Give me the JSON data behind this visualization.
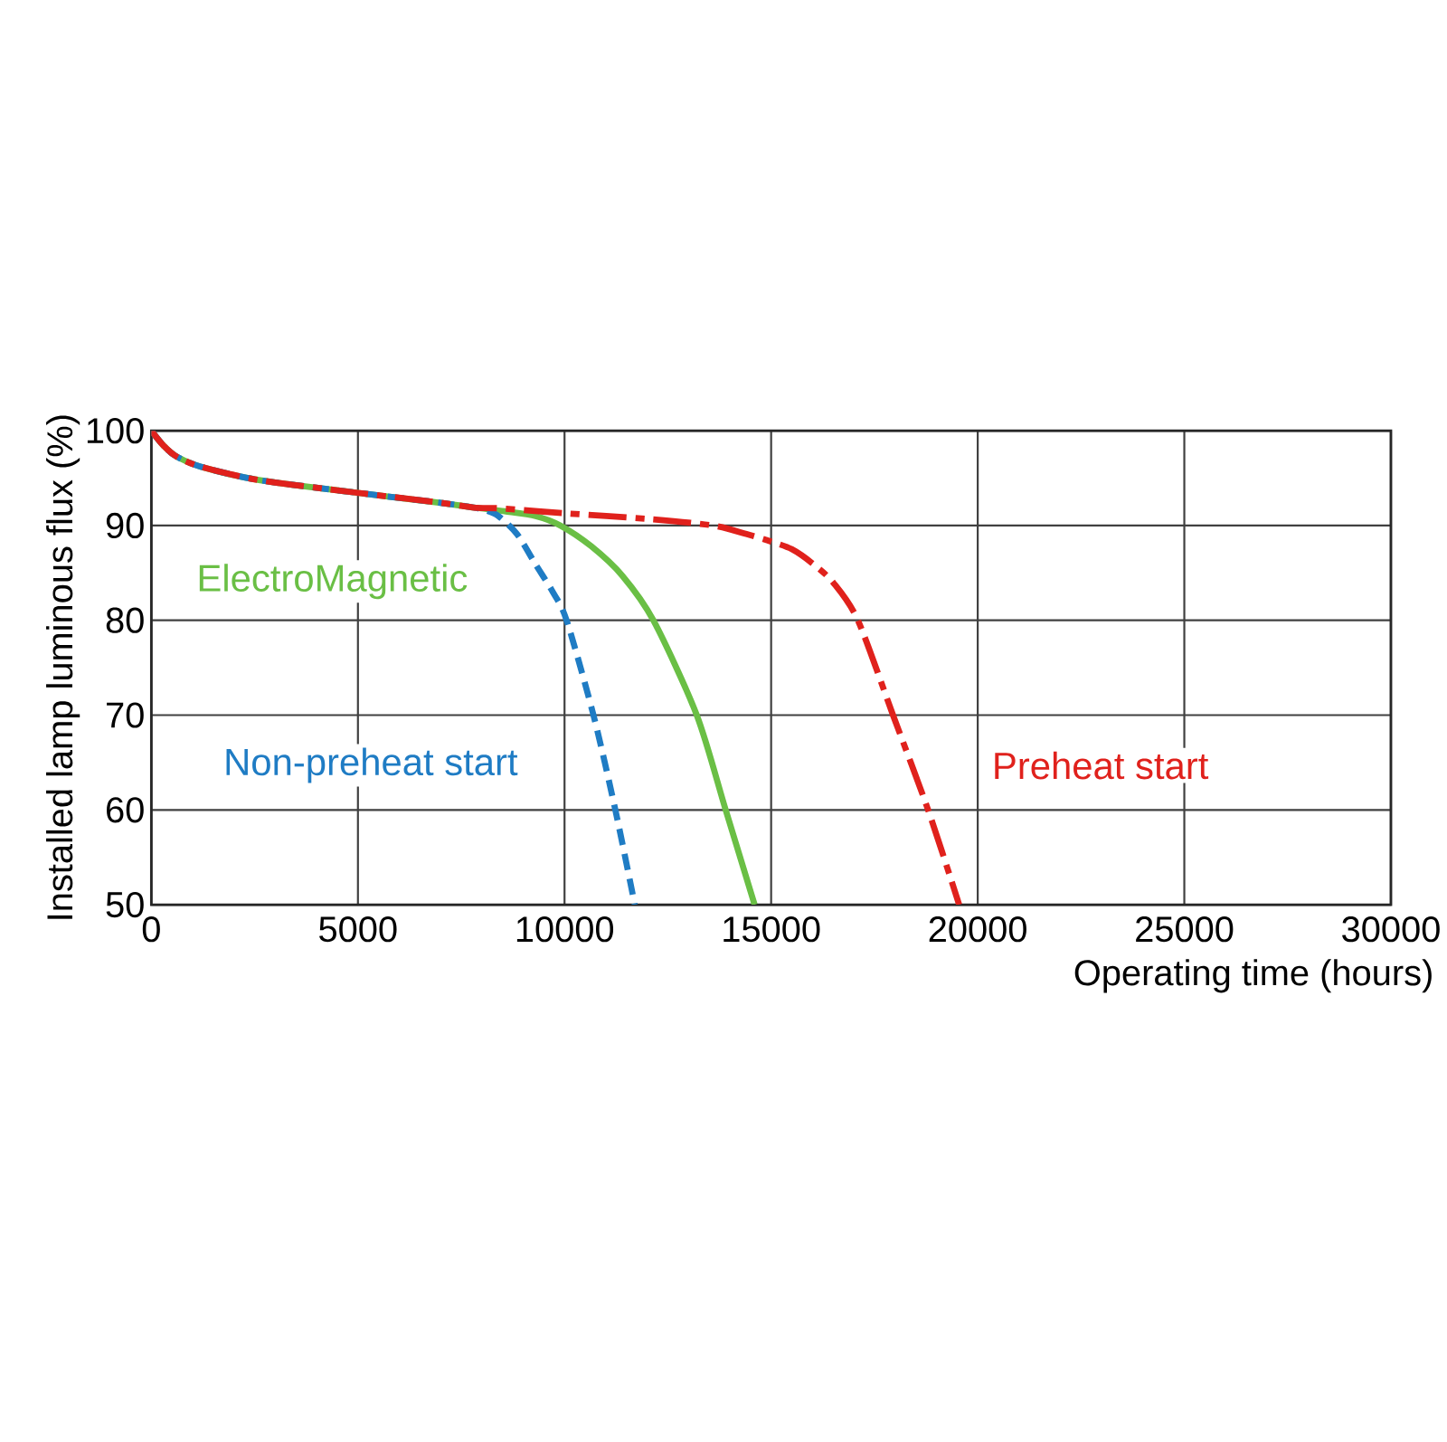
{
  "chart_data": {
    "type": "line",
    "xlabel": "Operating time (hours)",
    "ylabel": "Installed lamp luminous flux (%)",
    "xlim": [
      0,
      30000
    ],
    "ylim": [
      50,
      100
    ],
    "xticks": [
      0,
      5000,
      10000,
      15000,
      20000,
      25000,
      30000
    ],
    "yticks": [
      50,
      60,
      70,
      80,
      90,
      100
    ],
    "grid": true,
    "legend": false,
    "marker": "none",
    "series": [
      {
        "name": "ElectroMagnetic",
        "color": "#6abf45",
        "line_style": "solid",
        "x": [
          0,
          300,
          600,
          1200,
          2600,
          4900,
          7000,
          7800,
          8550,
          9300,
          9900,
          10650,
          11400,
          12150,
          13200,
          13900,
          14600
        ],
        "values": [
          100,
          98.4,
          97.3,
          96.2,
          94.8,
          93.5,
          92.4,
          91.9,
          91.5,
          91.0,
          90.0,
          87.8,
          84.7,
          80,
          70,
          60,
          50
        ]
      },
      {
        "name": "Non-preheat start",
        "color": "#1f7cc4",
        "line_style": "dashed",
        "x": [
          0,
          300,
          600,
          1200,
          2600,
          4900,
          7000,
          7800,
          8100,
          8400,
          8850,
          9300,
          9700,
          10050,
          10700,
          11230,
          11700
        ],
        "values": [
          100,
          98.4,
          97.3,
          96.2,
          94.8,
          93.5,
          92.4,
          91.9,
          91.6,
          91.0,
          89.1,
          85.9,
          83.1,
          80,
          70,
          60,
          50
        ]
      },
      {
        "name": "Preheat start",
        "color": "#e0211c",
        "line_style": "dashdot",
        "x": [
          0,
          300,
          600,
          1200,
          2600,
          4900,
          7000,
          7800,
          8500,
          10000,
          12000,
          13600,
          14400,
          15000,
          15500,
          16000,
          16500,
          17100,
          17950,
          18800,
          19550
        ],
        "values": [
          100,
          98.4,
          97.3,
          96.2,
          94.8,
          93.5,
          92.4,
          91.9,
          91.8,
          91.3,
          90.7,
          90.0,
          89.1,
          88.3,
          87.5,
          86.0,
          84.0,
          80,
          70,
          60,
          50
        ]
      }
    ]
  }
}
